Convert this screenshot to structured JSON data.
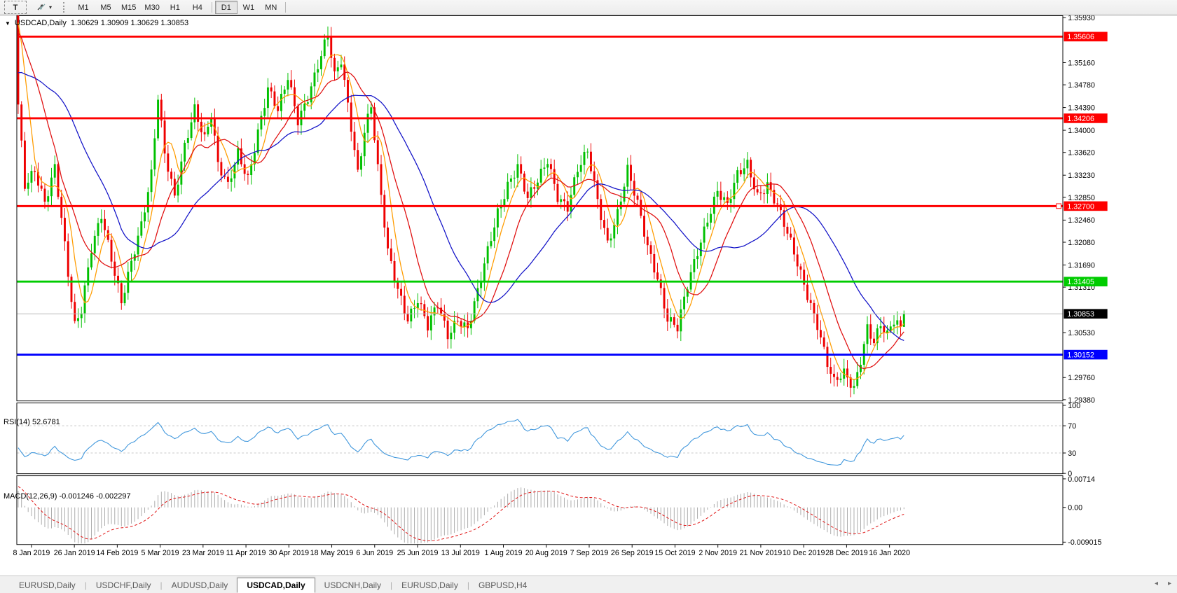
{
  "toolbar": {
    "text_tool_label": "T",
    "timeframes": [
      "M1",
      "M5",
      "M15",
      "M30",
      "H1",
      "H4",
      "D1",
      "W1",
      "MN"
    ],
    "active_timeframe": "D1"
  },
  "header": {
    "dropdown_glyph": "▼",
    "symbol_title": "USDCAD,Daily",
    "ohlc_text": "1.30629 1.30909 1.30629 1.30853"
  },
  "price_axis": {
    "ticks": [
      "1.35930",
      "1.35160",
      "1.34780",
      "1.34390",
      "1.34000",
      "1.33620",
      "1.33230",
      "1.32850",
      "1.32460",
      "1.32080",
      "1.31690",
      "1.31310",
      "1.30530",
      "1.29760",
      "1.29380"
    ]
  },
  "hlines": [
    {
      "name": "resistance-line-1",
      "price": 1.35606,
      "label": "1.35606",
      "color": "#FE0000",
      "thickness": 3,
      "label_bg": "#FE0000"
    },
    {
      "name": "resistance-line-2",
      "price": 1.34206,
      "label": "1.34206",
      "color": "#FE0000",
      "thickness": 3,
      "label_bg": "#FE0000"
    },
    {
      "name": "resistance-line-3",
      "price": 1.327,
      "label": "1.32700",
      "color": "#FE0000",
      "thickness": 3,
      "label_bg": "#FE0000",
      "handle": true
    },
    {
      "name": "support-line-green",
      "price": 1.31405,
      "label": "1.31405",
      "color": "#00CC00",
      "thickness": 3,
      "label_bg": "#00CC00"
    },
    {
      "name": "support-line-blue",
      "price": 1.30152,
      "label": "1.30152",
      "color": "#0000FE",
      "thickness": 3,
      "label_bg": "#0000FE"
    },
    {
      "name": "bid-price-line",
      "price": 1.30853,
      "label": "1.30853",
      "color": "#B9B9B9",
      "thickness": 1,
      "label_bg": "#000000"
    }
  ],
  "date_axis": [
    "8 Jan 2019",
    "26 Jan 2019",
    "14 Feb 2019",
    "5 Mar 2019",
    "23 Mar 2019",
    "11 Apr 2019",
    "30 Apr 2019",
    "18 May 2019",
    "6 Jun 2019",
    "25 Jun 2019",
    "13 Jul 2019",
    "1 Aug 2019",
    "20 Aug 2019",
    "7 Sep 2019",
    "26 Sep 2019",
    "15 Oct 2019",
    "2 Nov 2019",
    "21 Nov 2019",
    "10 Dec 2019",
    "28 Dec 2019",
    "16 Jan 2020"
  ],
  "chart_data": {
    "type": "candlestick",
    "symbol": "USDCAD",
    "timeframe": "Daily",
    "bar_count": 267,
    "ylim": [
      1.2938,
      1.3597
    ],
    "first_candle_open": 1.362,
    "up_color": "#00C000",
    "down_color": "#EE0000",
    "close_anchors": [
      [
        0,
        1.344
      ],
      [
        2,
        1.33
      ],
      [
        5,
        1.333
      ],
      [
        8,
        1.328
      ],
      [
        11,
        1.334
      ],
      [
        13,
        1.325
      ],
      [
        15,
        1.315
      ],
      [
        17,
        1.306
      ],
      [
        19,
        1.309
      ],
      [
        22,
        1.32
      ],
      [
        25,
        1.326
      ],
      [
        28,
        1.318
      ],
      [
        31,
        1.31
      ],
      [
        34,
        1.317
      ],
      [
        37,
        1.324
      ],
      [
        40,
        1.333
      ],
      [
        42,
        1.346
      ],
      [
        44,
        1.336
      ],
      [
        47,
        1.328
      ],
      [
        50,
        1.337
      ],
      [
        53,
        1.344
      ],
      [
        56,
        1.339
      ],
      [
        58,
        1.343
      ],
      [
        60,
        1.334
      ],
      [
        63,
        1.33
      ],
      [
        66,
        1.336
      ],
      [
        69,
        1.332
      ],
      [
        72,
        1.34
      ],
      [
        75,
        1.347
      ],
      [
        78,
        1.343
      ],
      [
        81,
        1.349
      ],
      [
        84,
        1.342
      ],
      [
        87,
        1.346
      ],
      [
        90,
        1.351
      ],
      [
        93,
        1.356
      ],
      [
        95,
        1.349
      ],
      [
        97,
        1.352
      ],
      [
        100,
        1.341
      ],
      [
        102,
        1.333
      ],
      [
        104,
        1.34
      ],
      [
        106,
        1.344
      ],
      [
        108,
        1.333
      ],
      [
        111,
        1.319
      ],
      [
        114,
        1.313
      ],
      [
        117,
        1.308
      ],
      [
        120,
        1.311
      ],
      [
        123,
        1.306
      ],
      [
        126,
        1.31
      ],
      [
        129,
        1.305
      ],
      [
        132,
        1.308
      ],
      [
        135,
        1.306
      ],
      [
        138,
        1.312
      ],
      [
        141,
        1.319
      ],
      [
        144,
        1.326
      ],
      [
        147,
        1.331
      ],
      [
        150,
        1.334
      ],
      [
        153,
        1.328
      ],
      [
        156,
        1.331
      ],
      [
        159,
        1.335
      ],
      [
        162,
        1.329
      ],
      [
        165,
        1.327
      ],
      [
        168,
        1.333
      ],
      [
        171,
        1.336
      ],
      [
        174,
        1.328
      ],
      [
        177,
        1.321
      ],
      [
        180,
        1.326
      ],
      [
        183,
        1.333
      ],
      [
        186,
        1.327
      ],
      [
        189,
        1.32
      ],
      [
        192,
        1.315
      ],
      [
        195,
        1.308
      ],
      [
        198,
        1.306
      ],
      [
        201,
        1.313
      ],
      [
        204,
        1.319
      ],
      [
        207,
        1.325
      ],
      [
        210,
        1.33
      ],
      [
        213,
        1.327
      ],
      [
        216,
        1.332
      ],
      [
        219,
        1.334
      ],
      [
        222,
        1.329
      ],
      [
        225,
        1.331
      ],
      [
        228,
        1.327
      ],
      [
        231,
        1.322
      ],
      [
        234,
        1.317
      ],
      [
        237,
        1.312
      ],
      [
        240,
        1.307
      ],
      [
        243,
        1.3
      ],
      [
        245,
        1.2965
      ],
      [
        248,
        1.298
      ],
      [
        251,
        1.2958
      ],
      [
        253,
        1.301
      ],
      [
        255,
        1.3065
      ],
      [
        257,
        1.304
      ],
      [
        259,
        1.3065
      ],
      [
        261,
        1.3045
      ],
      [
        263,
        1.307
      ],
      [
        265,
        1.3063
      ],
      [
        266,
        1.30853
      ]
    ],
    "last_candle": {
      "open": 1.30629,
      "high": 1.30909,
      "low": 1.30629,
      "close": 1.30853
    },
    "overlays": [
      {
        "name": "ma-fast",
        "type": "sma",
        "window": 6,
        "color": "#FF9C00"
      },
      {
        "name": "ma-medium",
        "type": "sma",
        "window": 14,
        "color": "#E01010"
      },
      {
        "name": "ma-slow",
        "type": "sma",
        "window": 32,
        "color": "#1414C8"
      }
    ],
    "prehistory": {
      "start": 1.325,
      "end": 1.363,
      "bars": 45
    }
  },
  "rsi": {
    "label": "RSI(14) 52.6781",
    "period": 14,
    "current": 52.6781,
    "line_color": "#3E96DC",
    "levels": [
      70,
      30
    ],
    "scale_ticks": [
      "100",
      "70",
      "30",
      "0"
    ],
    "scale_values": [
      100,
      70,
      30,
      0
    ],
    "range": [
      0,
      100
    ]
  },
  "macd": {
    "label": "MACD(12,26,9) -0.001246 -0.002297",
    "fast": 12,
    "slow": 26,
    "signal": 9,
    "current_main": -0.001246,
    "current_signal": -0.002297,
    "histogram_color": "#ABABAB",
    "signal_color": "#E01010",
    "scale_ticks": [
      "0.00714",
      "0.00",
      "-0.009015"
    ],
    "scale_values": [
      0.00714,
      0,
      -0.009015
    ]
  },
  "tabs": {
    "items": [
      "EURUSD,Daily",
      "USDCHF,Daily",
      "AUDUSD,Daily",
      "USDCAD,Daily",
      "USDCNH,Daily",
      "EURUSD,Daily",
      "GBPUSD,H4"
    ],
    "active": "USDCAD,Daily",
    "scroll_left_glyph": "◂",
    "scroll_right_glyph": "▸"
  }
}
